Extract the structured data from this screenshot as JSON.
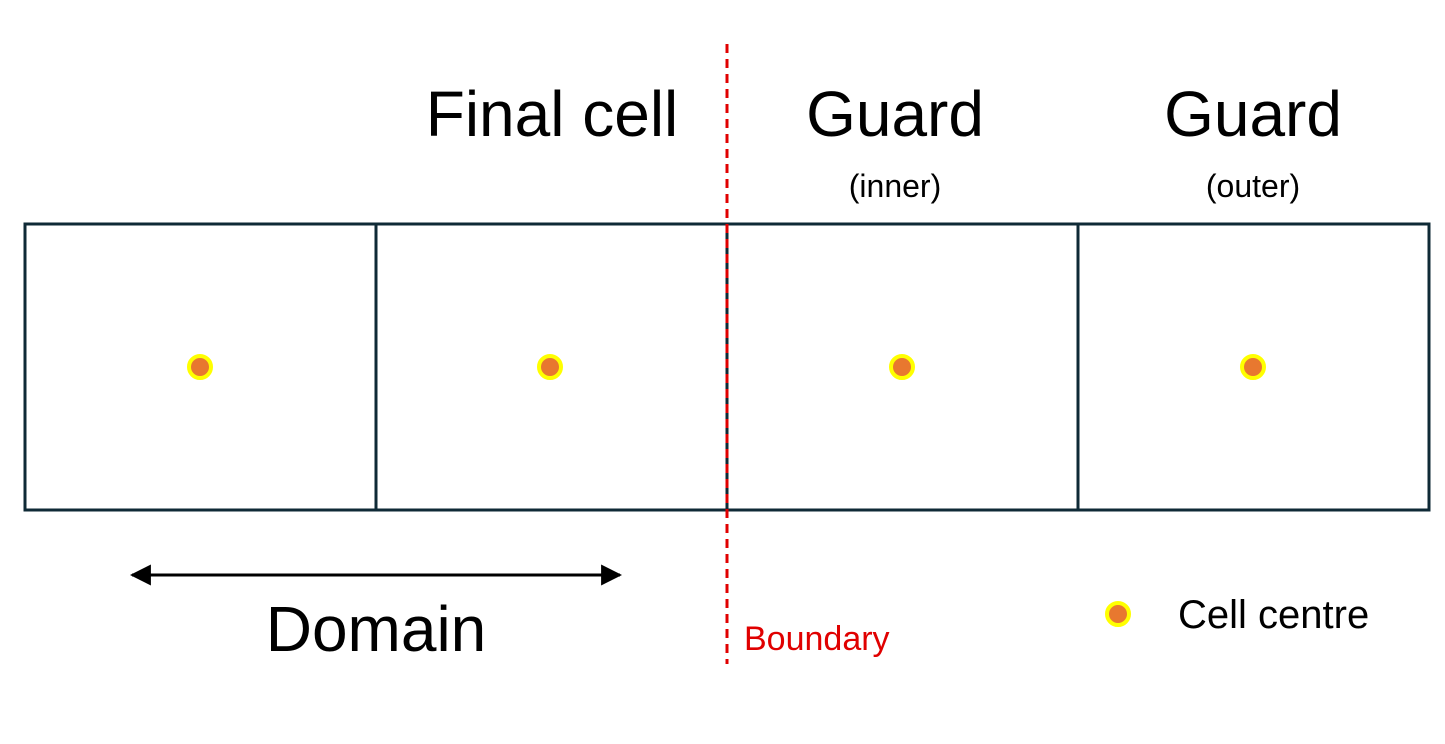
{
  "labels": {
    "final_cell": "Final cell",
    "guard_inner_title": "Guard",
    "guard_inner_sub": "(inner)",
    "guard_outer_title": "Guard",
    "guard_outer_sub": "(outer)",
    "domain": "Domain",
    "boundary": "Boundary",
    "legend_cell_centre": "Cell centre"
  },
  "cells": [
    {
      "role": "domain"
    },
    {
      "role": "final"
    },
    {
      "role": "guard-inner"
    },
    {
      "role": "guard-outer"
    }
  ],
  "colors": {
    "cell_border": "#0f2a36",
    "centre_fill": "#e8782f",
    "centre_ring": "#ffff00",
    "boundary": "#e00000",
    "arrow": "#000000",
    "text": "#000000"
  },
  "icons": {
    "cell_centre": "dot-icon",
    "domain_arrow": "double-arrow-icon",
    "boundary_line": "dashed-line"
  }
}
